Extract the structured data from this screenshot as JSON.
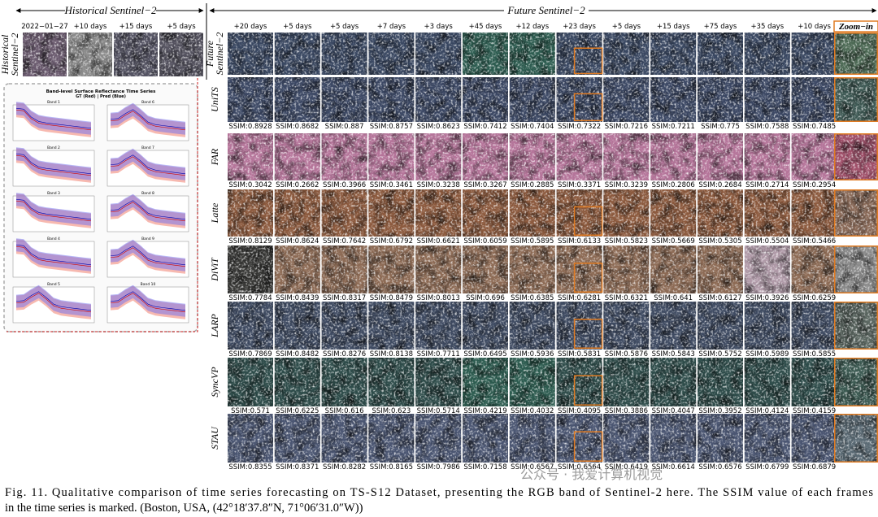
{
  "header": {
    "historical": "Historical Sentinel−2",
    "future": "Future Sentinel−2",
    "zoom": "Zoom−in"
  },
  "historical": {
    "label": [
      "Historical",
      "Sentinel−2"
    ],
    "dates": [
      "2022−01−27",
      "+10 days",
      "+15 days",
      "+5 days"
    ]
  },
  "future_days": [
    "+20 days",
    "+5 days",
    "+5 days",
    "+7 days",
    "+3 days",
    "+45 days",
    "+12 days",
    "+23 days",
    "+5 days",
    "+15 days",
    "+75 days",
    "+35 days",
    "+10 days"
  ],
  "rows": [
    {
      "label": [
        "Future",
        "Sentinel−2"
      ]
    },
    {
      "label": [
        "UniTS"
      ],
      "ssim": [
        "SSIM:0.8928",
        "SSIM:0.8682",
        "SSIM:0.887",
        "SSIM:0.8757",
        "SSIM:0.8623",
        "SSIM:0.7412",
        "SSIM:0.7404",
        "SSIM:0.7322",
        "SSIM:0.7216",
        "SSIM:0.7211",
        "SSIM:0.775",
        "SSIM:0.7588",
        "SSIM:0.7485"
      ]
    },
    {
      "label": [
        "FAR"
      ],
      "ssim": [
        "SSIM:0.3042",
        "SSIM:0.2662",
        "SSIM:0.3966",
        "SSIM:0.3461",
        "SSIM:0.3238",
        "SSIM:0.3267",
        "SSIM:0.2885",
        "SSIM:0.3371",
        "SSIM:0.3239",
        "SSIM:0.2806",
        "SSIM:0.2684",
        "SSIM:0.2714",
        "SSIM:0.2954"
      ]
    },
    {
      "label": [
        "Latte"
      ],
      "ssim": [
        "SSIM:0.8129",
        "SSIM:0.8624",
        "SSIM:0.7642",
        "SSIM:0.6792",
        "SSIM:0.6621",
        "SSIM:0.6059",
        "SSIM:0.5895",
        "SSIM:0.6133",
        "SSIM:0.5823",
        "SSIM:0.5669",
        "SSIM:0.5305",
        "SSIM:0.5504",
        "SSIM:0.5466"
      ]
    },
    {
      "label": [
        "DiViT"
      ],
      "ssim": [
        "SSIM:0.7784",
        "SSIM:0.8439",
        "SSIM:0.8317",
        "SSIM:0.8479",
        "SSIM:0.8013",
        "SSIM:0.696",
        "SSIM:0.6385",
        "SSIM:0.6281",
        "SSIM:0.6321",
        "SSIM:0.641",
        "SSIM:0.6127",
        "SSIM:0.3926",
        "SSIM:0.6259"
      ]
    },
    {
      "label": [
        "LARP"
      ],
      "ssim": [
        "SSIM:0.7869",
        "SSIM:0.8482",
        "SSIM:0.8276",
        "SSIM:0.8138",
        "SSIM:0.7711",
        "SSIM:0.6495",
        "SSIM:0.5936",
        "SSIM:0.5831",
        "SSIM:0.5876",
        "SSIM:0.5843",
        "SSIM:0.5752",
        "SSIM:0.5989",
        "SSIM:0.5855"
      ]
    },
    {
      "label": [
        "SyncVP"
      ],
      "ssim": [
        "SSIM:0.571",
        "SSIM:0.6225",
        "SSIM:0.616",
        "SSIM:0.623",
        "SSIM:0.5714",
        "SSIM:0.4219",
        "SSIM:0.4032",
        "SSIM:0.4095",
        "SSIM:0.3886",
        "SSIM:0.4047",
        "SSIM:0.3952",
        "SSIM:0.4124",
        "SSIM:0.4159"
      ]
    },
    {
      "label": [
        "STAU"
      ],
      "ssim": [
        "SSIM:0.8355",
        "SSIM:0.8371",
        "SSIM:0.8282",
        "SSIM:0.8165",
        "SSIM:0.7986",
        "SSIM:0.7158",
        "SSIM:0.6567",
        "SSIM:0.6564",
        "SSIM:0.6419",
        "SSIM:0.6614",
        "SSIM:0.6576",
        "SSIM:0.6799",
        "SSIM:0.6879"
      ]
    }
  ],
  "inset": {
    "title": "Band-level Surface Reflectance Time Series",
    "subtitle": "GT (Red) | Pred (Blue)",
    "bands": [
      "Band 1",
      "Band 6",
      "Band 2",
      "Band 7",
      "Band 3",
      "Band 8",
      "Band 4",
      "Band 9",
      "Band 5",
      "Band 10"
    ]
  },
  "caption": [
    "Fig. 11.    Qualitative comparison of time series forecasting on TS-S12 Dataset, presenting the RGB band of Sentinel-2 here. The SSIM value of each frames",
    "in the time series is marked. (Boston, USA, (42°18′37.8″N, 71°06′31.0″W))"
  ],
  "watermark": "公众号 · 我爱计算机视觉"
}
